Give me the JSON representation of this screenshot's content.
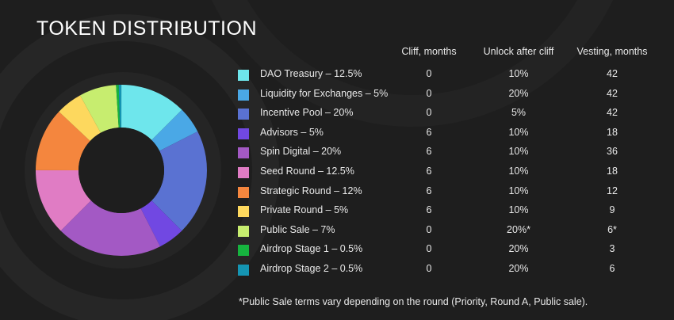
{
  "title": "TOKEN DISTRIBUTION",
  "table": {
    "columns": [
      "Cliff, months",
      "Unlock after cliff",
      "Vesting, months"
    ],
    "rows": [
      {
        "label": "DAO Treasury – 12.5%",
        "cliff": "0",
        "unlock": "10%",
        "vesting": "42"
      },
      {
        "label": "Liquidity for Exchanges – 5%",
        "cliff": "0",
        "unlock": "20%",
        "vesting": "42"
      },
      {
        "label": "Incentive Pool – 20%",
        "cliff": "0",
        "unlock": "5%",
        "vesting": "42"
      },
      {
        "label": "Advisors – 5%",
        "cliff": "6",
        "unlock": "10%",
        "vesting": "18"
      },
      {
        "label": "Spin Digital – 20%",
        "cliff": "6",
        "unlock": "10%",
        "vesting": "36"
      },
      {
        "label": "Seed Round – 12.5%",
        "cliff": "6",
        "unlock": "10%",
        "vesting": "18"
      },
      {
        "label": "Strategic Round – 12%",
        "cliff": "6",
        "unlock": "10%",
        "vesting": "12"
      },
      {
        "label": "Private Round – 5%",
        "cliff": "6",
        "unlock": "10%",
        "vesting": "9"
      },
      {
        "label": "Public Sale – 7%",
        "cliff": "0",
        "unlock": "20%*",
        "vesting": "6*"
      },
      {
        "label": "Airdrop Stage 1 – 0.5%",
        "cliff": "0",
        "unlock": "20%",
        "vesting": "3"
      },
      {
        "label": "Airdrop Stage 2 – 0.5%",
        "cliff": "0",
        "unlock": "20%",
        "vesting": "6"
      }
    ]
  },
  "footnote": "*Public Sale terms vary depending on the round (Priority, Round A, Public sale).",
  "chart_data": {
    "type": "pie",
    "donut": true,
    "categories": [
      "DAO Treasury",
      "Liquidity for Exchanges",
      "Incentive Pool",
      "Advisors",
      "Spin Digital",
      "Seed Round",
      "Strategic Round",
      "Private Round",
      "Public Sale",
      "Airdrop Stage 1",
      "Airdrop Stage 2"
    ],
    "values": [
      12.5,
      5,
      20,
      5,
      20,
      12.5,
      12,
      5,
      7,
      0.5,
      0.5
    ],
    "colors": [
      "#6ee6ec",
      "#4aa8e6",
      "#5a72d2",
      "#7148e2",
      "#a359c4",
      "#e07cc4",
      "#f4863e",
      "#fdd85e",
      "#c7ed6f",
      "#16b33f",
      "#1595b3"
    ],
    "legend_position": "right"
  }
}
